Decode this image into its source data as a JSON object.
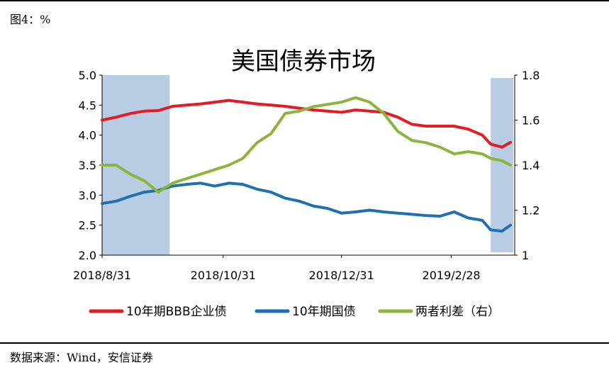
{
  "figure_label": "图4：%",
  "source_label": "数据来源：Wind，安信证券",
  "chart_data": {
    "type": "line",
    "title": "美国债券市场",
    "y_left": {
      "min": 2.0,
      "max": 5.0,
      "ticks": [
        "2.0",
        "2.5",
        "3.0",
        "3.5",
        "4.0",
        "4.5",
        "5.0"
      ]
    },
    "y_right": {
      "min": 1.0,
      "max": 1.8,
      "ticks": [
        "1",
        "1.2",
        "1.4",
        "1.6",
        "1.8"
      ]
    },
    "x_ticks": [
      "2018/8/31",
      "2018/10/31",
      "2018/12/31",
      "2019/2/28"
    ],
    "x_tick_positions": [
      0,
      43,
      85,
      124
    ],
    "x_range": [
      0,
      145
    ],
    "shaded_regions": [
      {
        "from": 0,
        "to": 24,
        "label": "left-shade"
      },
      {
        "from": 138,
        "to": 145,
        "label": "right-shade"
      }
    ],
    "colors": {
      "bbb": "#e41b23",
      "treasury": "#1f6fb3",
      "spread": "#8cb43c",
      "shade": "#b8cce4"
    },
    "legend": [
      {
        "name": "10年期BBB企业债",
        "series": "bbb"
      },
      {
        "name": "10年期国债",
        "series": "treasury"
      },
      {
        "name": "两者利差（右）",
        "series": "spread"
      }
    ],
    "series": [
      {
        "name": "10年期BBB企业债",
        "key": "bbb",
        "axis": "left",
        "x": [
          0,
          5,
          10,
          15,
          20,
          25,
          30,
          35,
          40,
          45,
          50,
          55,
          60,
          65,
          70,
          75,
          80,
          85,
          90,
          95,
          100,
          105,
          110,
          115,
          120,
          125,
          130,
          135,
          138,
          142,
          145
        ],
        "values": [
          4.25,
          4.3,
          4.36,
          4.4,
          4.41,
          4.48,
          4.5,
          4.52,
          4.55,
          4.58,
          4.55,
          4.52,
          4.5,
          4.48,
          4.45,
          4.42,
          4.4,
          4.38,
          4.42,
          4.4,
          4.38,
          4.3,
          4.18,
          4.15,
          4.15,
          4.15,
          4.1,
          4.0,
          3.85,
          3.8,
          3.88
        ]
      },
      {
        "name": "10年期国债",
        "key": "treasury",
        "axis": "left",
        "x": [
          0,
          5,
          10,
          15,
          20,
          25,
          30,
          35,
          40,
          45,
          50,
          55,
          60,
          65,
          70,
          75,
          80,
          85,
          90,
          95,
          100,
          105,
          110,
          115,
          120,
          125,
          130,
          135,
          138,
          142,
          145
        ],
        "values": [
          2.86,
          2.9,
          2.98,
          3.05,
          3.08,
          3.15,
          3.18,
          3.2,
          3.15,
          3.2,
          3.18,
          3.1,
          3.05,
          2.95,
          2.9,
          2.82,
          2.78,
          2.7,
          2.72,
          2.75,
          2.72,
          2.7,
          2.68,
          2.66,
          2.65,
          2.72,
          2.62,
          2.58,
          2.42,
          2.4,
          2.5
        ]
      },
      {
        "name": "两者利差（右）",
        "key": "spread",
        "axis": "right",
        "x": [
          0,
          5,
          10,
          15,
          20,
          25,
          30,
          35,
          40,
          45,
          50,
          55,
          60,
          65,
          70,
          75,
          80,
          85,
          90,
          95,
          100,
          105,
          110,
          115,
          120,
          125,
          130,
          135,
          138,
          142,
          145
        ],
        "values": [
          1.4,
          1.4,
          1.36,
          1.33,
          1.28,
          1.32,
          1.34,
          1.36,
          1.38,
          1.4,
          1.43,
          1.5,
          1.54,
          1.63,
          1.64,
          1.66,
          1.67,
          1.68,
          1.7,
          1.68,
          1.63,
          1.55,
          1.51,
          1.5,
          1.48,
          1.45,
          1.46,
          1.45,
          1.43,
          1.42,
          1.4
        ]
      }
    ]
  }
}
